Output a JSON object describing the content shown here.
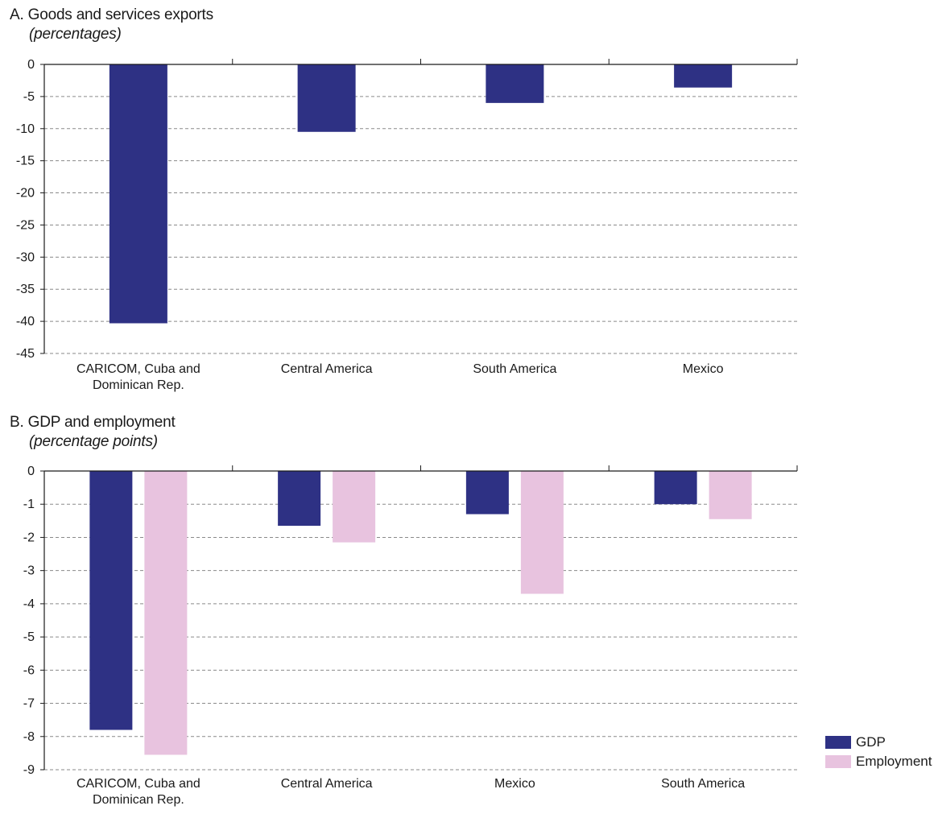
{
  "chart_data": [
    {
      "type": "bar",
      "title": "A. Goods and services exports",
      "subtitle": "(percentages)",
      "categories": [
        "CARICOM, Cuba and Dominican Rep.",
        "Central America",
        "South America",
        "Mexico"
      ],
      "category_lines": [
        [
          "CARICOM, Cuba and",
          "Dominican Rep."
        ],
        [
          "Central America"
        ],
        [
          "South America"
        ],
        [
          "Mexico"
        ]
      ],
      "series": [
        {
          "values": [
            -40.3,
            -10.5,
            -6.0,
            -3.6
          ],
          "color": "#2e3184"
        }
      ],
      "ylim": [
        -45,
        0
      ],
      "yticks": [
        0,
        -5,
        -10,
        -15,
        -20,
        -25,
        -30,
        -35,
        -40,
        -45
      ],
      "grid": true,
      "grid_style": "dashed horizontal"
    },
    {
      "type": "bar",
      "title": "B. GDP and employment",
      "subtitle": "(percentage points)",
      "categories": [
        "CARICOM, Cuba and Dominican Rep.",
        "Central America",
        "Mexico",
        "South America"
      ],
      "category_lines": [
        [
          "CARICOM, Cuba and",
          "Dominican Rep."
        ],
        [
          "Central America"
        ],
        [
          "Mexico"
        ],
        [
          "South America"
        ]
      ],
      "series": [
        {
          "name": "GDP",
          "values": [
            -7.8,
            -1.65,
            -1.3,
            -1.0
          ],
          "color": "#2e3184"
        },
        {
          "name": "Employment",
          "values": [
            -8.55,
            -2.15,
            -3.7,
            -1.45
          ],
          "color": "#e8c3df"
        }
      ],
      "ylim": [
        -9,
        0
      ],
      "yticks": [
        0,
        -1,
        -2,
        -3,
        -4,
        -5,
        -6,
        -7,
        -8,
        -9
      ],
      "grid": true,
      "grid_style": "dashed horizontal",
      "legend_position": "bottom-right"
    }
  ]
}
